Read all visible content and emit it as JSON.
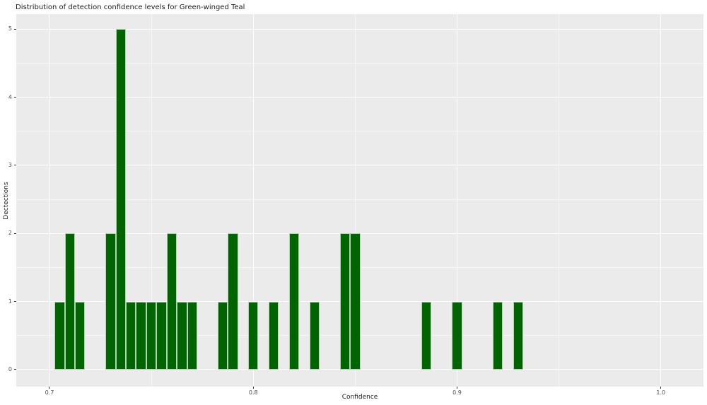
{
  "chart_data": {
    "type": "bar",
    "subtype": "histogram",
    "title": "Distribution of detection confidence levels for Green-winged Teal",
    "xlabel": "Confidence",
    "ylabel": "Dectections",
    "legend": null,
    "grid": true,
    "bin_width": 0.005,
    "xlim": [
      0.6837,
      1.0209
    ],
    "ylim": [
      -0.25,
      5.22
    ],
    "x_ticks": [
      0.7,
      0.8,
      0.9,
      1.0
    ],
    "x_tick_labels": [
      "0.7",
      "0.8",
      "0.9",
      "1.0"
    ],
    "x_minor_ticks": [
      0.75,
      0.85,
      0.95
    ],
    "y_ticks": [
      0,
      1,
      2,
      3,
      4,
      5
    ],
    "y_tick_labels": [
      "0",
      "1",
      "2",
      "3",
      "4",
      "5"
    ],
    "y_minor_ticks": [
      0.5,
      1.5,
      2.5,
      3.5,
      4.5
    ],
    "bars": [
      {
        "x": 0.705,
        "count": 1
      },
      {
        "x": 0.71,
        "count": 2
      },
      {
        "x": 0.715,
        "count": 1
      },
      {
        "x": 0.73,
        "count": 2
      },
      {
        "x": 0.735,
        "count": 5
      },
      {
        "x": 0.74,
        "count": 1
      },
      {
        "x": 0.745,
        "count": 1
      },
      {
        "x": 0.75,
        "count": 1
      },
      {
        "x": 0.755,
        "count": 1
      },
      {
        "x": 0.76,
        "count": 2
      },
      {
        "x": 0.765,
        "count": 1
      },
      {
        "x": 0.77,
        "count": 1
      },
      {
        "x": 0.785,
        "count": 1
      },
      {
        "x": 0.79,
        "count": 2
      },
      {
        "x": 0.8,
        "count": 1
      },
      {
        "x": 0.81,
        "count": 1
      },
      {
        "x": 0.82,
        "count": 2
      },
      {
        "x": 0.83,
        "count": 1
      },
      {
        "x": 0.845,
        "count": 2
      },
      {
        "x": 0.85,
        "count": 2
      },
      {
        "x": 0.885,
        "count": 1
      },
      {
        "x": 0.9,
        "count": 1
      },
      {
        "x": 0.92,
        "count": 1
      },
      {
        "x": 0.93,
        "count": 1
      }
    ],
    "colors": {
      "bar_fill": "#006400",
      "bar_border": "rgba(255,255,255,0.7)",
      "panel_bg": "#ebebeb",
      "grid_major": "#ffffff",
      "grid_minor": "#f6f6f6",
      "tick_mark": "#333333",
      "tick_label": "#4d4d4d",
      "text": "#1a1a1a"
    }
  }
}
